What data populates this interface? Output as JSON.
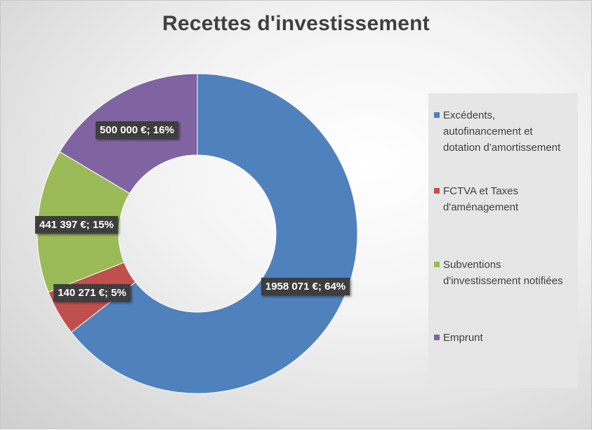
{
  "title": "Recettes d'investissement",
  "colors": {
    "blue": "#4f81bd",
    "red": "#c0504d",
    "green": "#9bbb59",
    "purple": "#8064a2"
  },
  "chart_data": {
    "type": "pie",
    "variant": "donut",
    "title": "Recettes d'investissement",
    "legend_position": "right",
    "series": [
      {
        "name": "Excédents, autofinancement et dotation d'amortissement",
        "value": 1958071,
        "percent": 64,
        "label": "1958 071 €; 64%",
        "color": "#4f81bd"
      },
      {
        "name": "FCTVA et Taxes d'aménagement",
        "value": 140271,
        "percent": 5,
        "label": "140 271 €; 5%",
        "color": "#c0504d"
      },
      {
        "name": "Subventions d'investissement notifiées",
        "value": 441397,
        "percent": 15,
        "label": "441 397 €; 15%",
        "color": "#9bbb59"
      },
      {
        "name": "Emprunt",
        "value": 500000,
        "percent": 16,
        "label": "500 000 €; 16%",
        "color": "#8064a2"
      }
    ]
  },
  "legend": {
    "items": [
      {
        "text": "Excédents,\nautofinancement  et\ndotation d'amortissement",
        "color": "#4f81bd"
      },
      {
        "text": "FCTVA et Taxes\nd'aménagement",
        "color": "#c0504d"
      },
      {
        "text": "Subventions\nd'investissement  notifiées",
        "color": "#9bbb59"
      },
      {
        "text": "Emprunt",
        "color": "#8064a2"
      }
    ]
  }
}
